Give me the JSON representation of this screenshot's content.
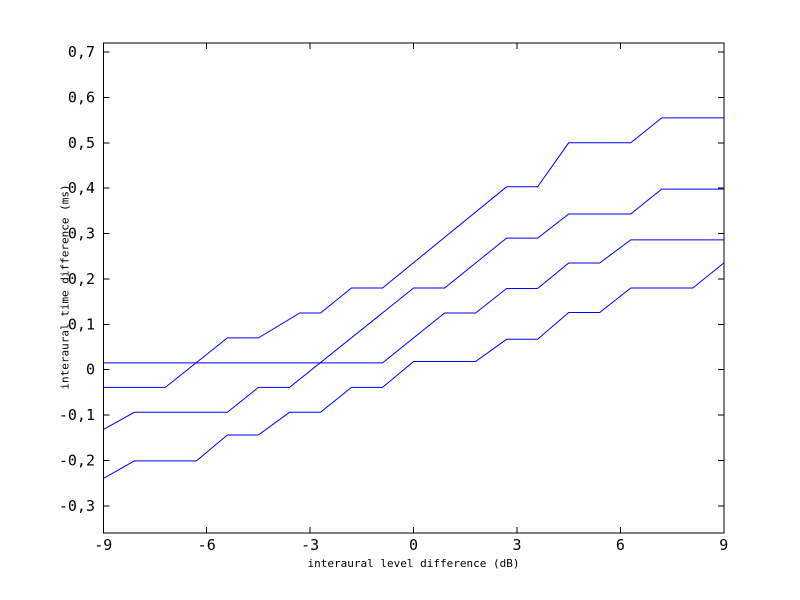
{
  "figure": {
    "background": "#ffffff",
    "axis_color": "#000000",
    "series_color": "#0000ff"
  },
  "chart_data": {
    "type": "line",
    "title": "",
    "xlabel": "interaural level difference (dB)",
    "ylabel": "interaural time difference (ms)",
    "xlim": [
      -9,
      9
    ],
    "ylim": [
      -0.36,
      0.72
    ],
    "grid": false,
    "legend_position": "none",
    "x_tick_values": [
      -9,
      -6,
      -3,
      0,
      3,
      6,
      9
    ],
    "x_tick_labels": [
      "-9",
      "-6",
      "-3",
      "0",
      "3",
      "6",
      "9"
    ],
    "y_tick_values": [
      0.7,
      0.6,
      0.5,
      0.4,
      0.3,
      0.2,
      0.1,
      0,
      -0.1,
      -0.2,
      -0.3
    ],
    "y_tick_labels": [
      "0,7",
      "0,6",
      "0,5",
      "0,4",
      "0,3",
      "0,2",
      "0,1",
      "0",
      "-0,1",
      "-0,2",
      "-0,3"
    ],
    "series": [
      {
        "name": "curve-1",
        "points": [
          [
            -9,
            0.015
          ],
          [
            -0.9,
            0.015
          ],
          [
            0.9,
            0.125
          ],
          [
            1.8,
            0.125
          ],
          [
            2.7,
            0.179
          ],
          [
            3.6,
            0.179
          ],
          [
            4.5,
            0.235
          ],
          [
            5.4,
            0.235
          ],
          [
            6.3,
            0.286
          ],
          [
            9,
            0.286
          ]
        ]
      },
      {
        "name": "curve-2",
        "points": [
          [
            -9,
            -0.039
          ],
          [
            -7.2,
            -0.039
          ],
          [
            -5.4,
            0.07
          ],
          [
            -4.5,
            0.07
          ],
          [
            -3.3,
            0.125
          ],
          [
            -2.7,
            0.125
          ],
          [
            -1.8,
            0.18
          ],
          [
            -0.9,
            0.18
          ],
          [
            2.7,
            0.403
          ],
          [
            3.6,
            0.403
          ],
          [
            4.5,
            0.5
          ],
          [
            6.3,
            0.5
          ],
          [
            7.2,
            0.555
          ],
          [
            9,
            0.555
          ]
        ]
      },
      {
        "name": "curve-3",
        "points": [
          [
            -9,
            -0.132
          ],
          [
            -8.1,
            -0.094
          ],
          [
            -5.4,
            -0.094
          ],
          [
            -4.5,
            -0.039
          ],
          [
            -3.6,
            -0.039
          ],
          [
            0,
            0.18
          ],
          [
            0.9,
            0.18
          ],
          [
            2.7,
            0.29
          ],
          [
            3.6,
            0.29
          ],
          [
            4.5,
            0.343
          ],
          [
            6.3,
            0.343
          ],
          [
            7.2,
            0.398
          ],
          [
            9,
            0.398
          ]
        ]
      },
      {
        "name": "curve-4",
        "points": [
          [
            -9,
            -0.24
          ],
          [
            -8.1,
            -0.201
          ],
          [
            -6.3,
            -0.201
          ],
          [
            -5.4,
            -0.144
          ],
          [
            -4.5,
            -0.144
          ],
          [
            -3.6,
            -0.094
          ],
          [
            -2.7,
            -0.094
          ],
          [
            -1.8,
            -0.039
          ],
          [
            -0.9,
            -0.039
          ],
          [
            0,
            0.018
          ],
          [
            1.8,
            0.018
          ],
          [
            2.7,
            0.067
          ],
          [
            3.6,
            0.067
          ],
          [
            4.5,
            0.126
          ],
          [
            5.4,
            0.126
          ],
          [
            6.3,
            0.18
          ],
          [
            8.1,
            0.18
          ],
          [
            9,
            0.235
          ]
        ]
      }
    ]
  }
}
